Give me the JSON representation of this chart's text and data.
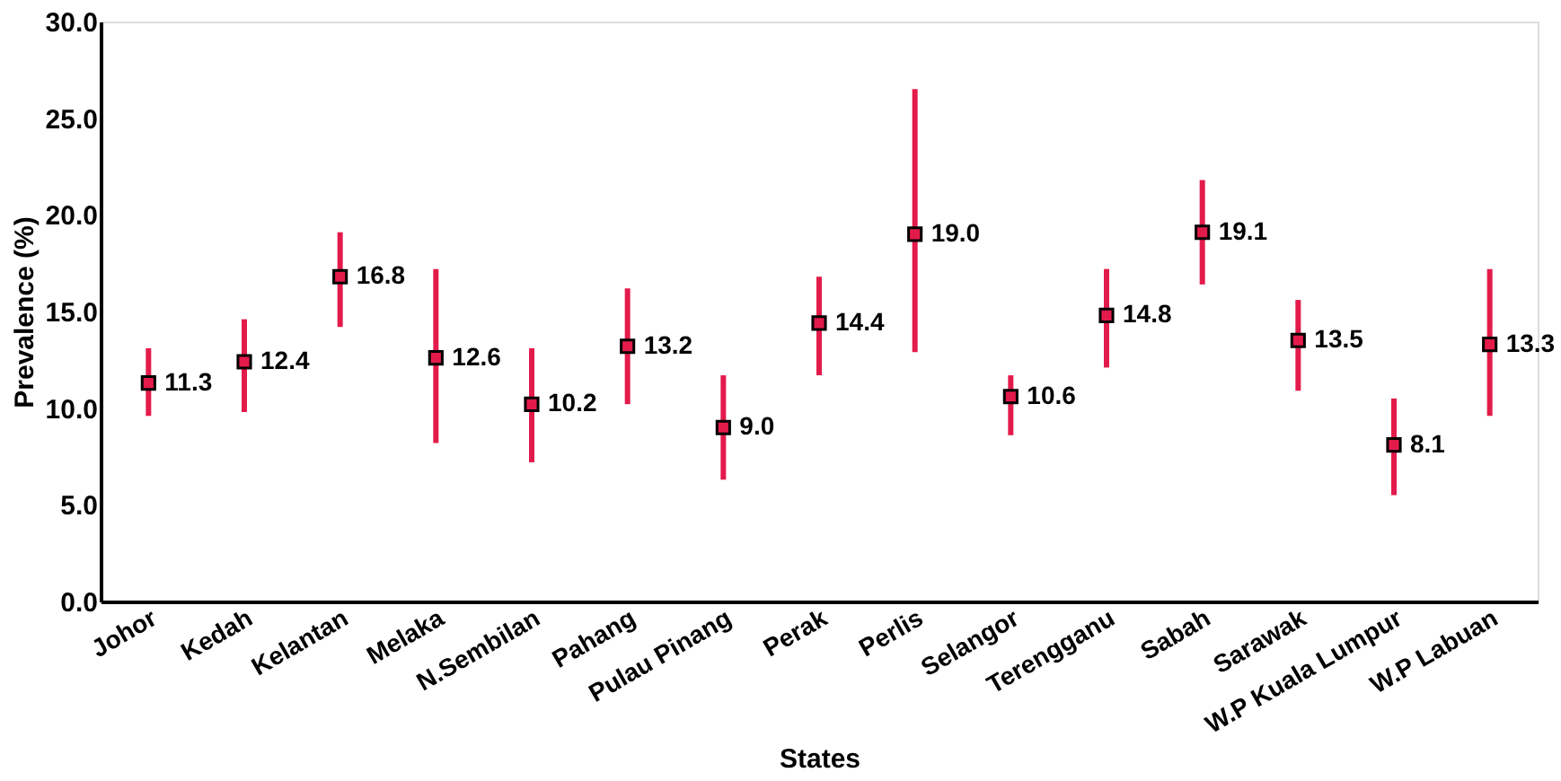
{
  "chart_data": {
    "type": "scatter",
    "xlabel": "States",
    "ylabel": "Prevalence (%)",
    "categories": [
      "Johor",
      "Kedah",
      "Kelantan",
      "Melaka",
      "N.Sembilan",
      "Pahang",
      "Pulau Pinang",
      "Perak",
      "Perlis",
      "Selangor",
      "Terengganu",
      "Sabah",
      "Sarawak",
      "W.P Kuala Lumpur",
      "W.P Labuan"
    ],
    "series": [
      {
        "color": "#e31b4b",
        "values": [
          11.3,
          12.4,
          16.8,
          12.6,
          10.2,
          13.2,
          9.0,
          14.4,
          19.0,
          10.6,
          14.8,
          19.1,
          13.5,
          8.1,
          13.3
        ],
        "errors": [
          [
            9.6,
            13.1
          ],
          [
            9.8,
            14.6
          ],
          [
            14.2,
            19.1
          ],
          [
            8.2,
            17.2
          ],
          [
            7.2,
            13.1
          ],
          [
            10.2,
            16.2
          ],
          [
            6.3,
            11.7
          ],
          [
            11.7,
            16.8
          ],
          [
            12.9,
            26.5
          ],
          [
            8.6,
            11.7
          ],
          [
            12.1,
            17.2
          ],
          [
            16.4,
            21.8
          ],
          [
            10.9,
            15.6
          ],
          [
            5.5,
            10.5
          ],
          [
            9.6,
            17.2
          ]
        ],
        "value_labels": [
          "11.3",
          "12.4",
          "16.8",
          "12.6",
          "10.2",
          "13.2",
          "9.0",
          "14.4",
          "19.0",
          "10.6",
          "14.8",
          "19.1",
          "13.5",
          "8.1",
          "13.3"
        ]
      }
    ],
    "ylim": [
      0,
      30
    ],
    "yticks": [
      {
        "value": 0,
        "label": "0.0"
      },
      {
        "value": 5,
        "label": "5.0"
      },
      {
        "value": 10,
        "label": "10.0"
      },
      {
        "value": 15,
        "label": "15.0"
      },
      {
        "value": 20,
        "label": "20.0"
      },
      {
        "value": 25,
        "label": "25.0"
      },
      {
        "value": 30,
        "label": "30.0"
      }
    ],
    "marker": "square",
    "grid": false
  }
}
